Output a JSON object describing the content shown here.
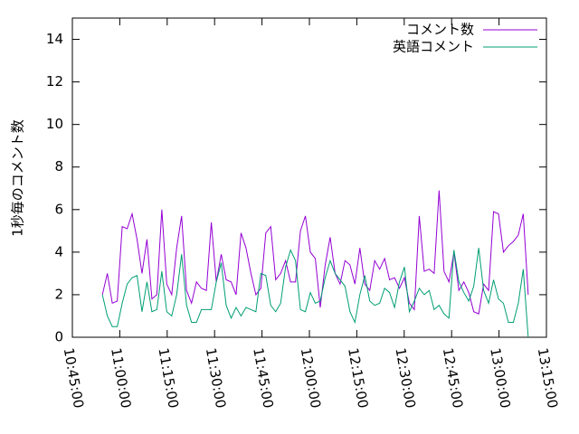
{
  "chart_data": {
    "type": "line",
    "y_label": "1秒毎のコメント数",
    "x": [
      "10:54:30",
      "10:56:04",
      "10:57:38",
      "10:59:12",
      "11:00:46",
      "11:02:20",
      "11:03:54",
      "11:05:28",
      "11:07:02",
      "11:08:36",
      "11:10:10",
      "11:11:44",
      "11:13:18",
      "11:14:52",
      "11:16:26",
      "11:18:00",
      "11:19:34",
      "11:21:08",
      "11:22:42",
      "11:24:16",
      "11:25:50",
      "11:27:24",
      "11:28:58",
      "11:30:32",
      "11:32:06",
      "11:33:40",
      "11:35:14",
      "11:36:48",
      "11:38:22",
      "11:39:56",
      "11:41:30",
      "11:43:04",
      "11:44:38",
      "11:46:12",
      "11:47:46",
      "11:49:20",
      "11:50:54",
      "11:52:28",
      "11:54:02",
      "11:55:36",
      "11:57:10",
      "11:58:44",
      "12:00:18",
      "12:01:52",
      "12:03:26",
      "12:05:00",
      "12:06:34",
      "12:08:08",
      "12:09:42",
      "12:11:16",
      "12:12:50",
      "12:14:24",
      "12:15:58",
      "12:17:32",
      "12:19:06",
      "12:20:40",
      "12:22:14",
      "12:23:48",
      "12:25:22",
      "12:26:56",
      "12:28:30",
      "12:30:04",
      "12:31:38",
      "12:33:12",
      "12:34:46",
      "12:36:20",
      "12:37:54",
      "12:39:28",
      "12:41:02",
      "12:42:36",
      "12:44:10",
      "12:45:44",
      "12:47:18",
      "12:48:52",
      "12:50:26",
      "12:52:00",
      "12:53:34",
      "12:55:08",
      "12:56:42",
      "12:58:16",
      "12:59:50",
      "13:01:24",
      "13:02:58",
      "13:04:32",
      "13:06:06",
      "13:07:40",
      "13:09:14"
    ],
    "series": [
      {
        "name": "コメント数",
        "color": "#9400d3",
        "values": [
          2.0,
          3.0,
          1.6,
          1.7,
          5.2,
          5.1,
          5.8,
          4.6,
          3.0,
          4.6,
          1.8,
          2.0,
          6.0,
          2.5,
          2.0,
          4.2,
          5.7,
          2.2,
          1.6,
          2.6,
          2.3,
          2.2,
          5.4,
          2.6,
          3.9,
          2.7,
          2.6,
          2.0,
          4.9,
          4.2,
          3.0,
          2.0,
          2.3,
          4.9,
          5.2,
          2.7,
          3.0,
          3.6,
          2.6,
          2.6,
          5.0,
          5.7,
          4.0,
          3.7,
          1.4,
          3.4,
          4.7,
          3.0,
          2.5,
          3.6,
          3.4,
          2.5,
          4.2,
          2.5,
          2.2,
          3.6,
          3.2,
          3.7,
          2.7,
          2.8,
          2.3,
          2.8,
          1.6,
          1.3,
          5.7,
          3.1,
          3.2,
          3.0,
          6.9,
          3.1,
          2.6,
          4.0,
          2.2,
          2.6,
          2.1,
          1.2,
          1.1,
          2.5,
          2.2,
          5.9,
          5.8,
          4.0,
          4.3,
          4.5,
          4.8,
          5.8,
          2.0
        ]
      },
      {
        "name": "英語コメント",
        "color": "#009e73",
        "values": [
          2.0,
          1.0,
          0.5,
          0.5,
          1.6,
          2.5,
          2.8,
          2.9,
          1.2,
          2.6,
          1.2,
          1.3,
          3.1,
          1.2,
          1.0,
          2.0,
          3.9,
          1.5,
          0.7,
          0.7,
          1.3,
          1.3,
          1.3,
          2.6,
          3.5,
          1.5,
          0.9,
          1.4,
          1.0,
          1.4,
          1.3,
          1.2,
          3.0,
          2.9,
          1.5,
          1.2,
          1.6,
          3.3,
          4.1,
          3.6,
          1.3,
          1.2,
          2.1,
          1.6,
          1.7,
          2.8,
          3.6,
          3.0,
          2.7,
          2.4,
          1.2,
          0.7,
          2.0,
          2.9,
          1.7,
          1.5,
          1.6,
          2.3,
          2.1,
          1.4,
          2.6,
          3.3,
          1.2,
          1.7,
          2.3,
          2.0,
          2.2,
          1.3,
          1.5,
          1.1,
          0.9,
          4.1,
          2.6,
          2.1,
          1.7,
          2.4,
          4.2,
          2.2,
          1.6,
          2.7,
          1.8,
          1.6,
          0.7,
          0.7,
          1.6,
          3.2,
          0.0
        ]
      }
    ],
    "xlim": [
      "10:45:00",
      "13:15:00"
    ],
    "xticks": [
      "10:45:00",
      "11:00:00",
      "11:15:00",
      "11:30:00",
      "11:45:00",
      "12:00:00",
      "12:15:00",
      "12:30:00",
      "12:45:00",
      "13:00:00",
      "13:15:00"
    ],
    "ylim": [
      0,
      15
    ],
    "yticks": [
      0,
      2,
      4,
      6,
      8,
      10,
      12,
      14
    ],
    "legend": "top-right"
  }
}
